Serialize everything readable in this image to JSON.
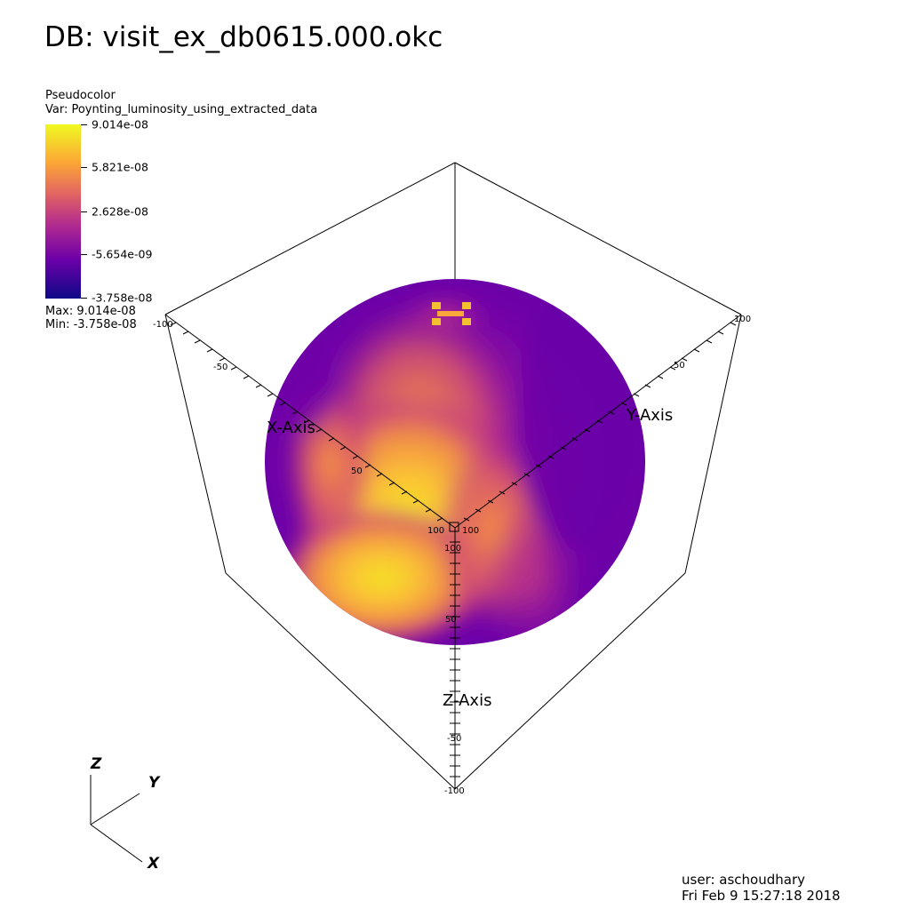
{
  "header": {
    "title": "DB: visit_ex_db0615.000.okc"
  },
  "legend": {
    "plot_type": "Pseudocolor",
    "variable": "Var: Poynting_luminosity_using_extracted_data",
    "ticks": [
      "9.014e-08",
      "5.821e-08",
      "2.628e-08",
      "-5.654e-09",
      "-3.758e-08"
    ],
    "max": "Max:  9.014e-08",
    "min": "Min: -3.758e-08",
    "colormap_colors": [
      "#f0f921",
      "#fca636",
      "#e16462",
      "#b12a90",
      "#6a00a8",
      "#0d0887"
    ]
  },
  "axes": {
    "x_title": "X-Axis",
    "y_title": "Y-Axis",
    "z_title": "Z-Axis",
    "x_labels": [
      "-100",
      "-50",
      "50",
      "100"
    ],
    "y_labels": [
      "100",
      "50",
      "100"
    ],
    "z_labels": [
      "100",
      "50",
      "-50",
      "-100"
    ],
    "corner_label": "100"
  },
  "triad": {
    "x": "X",
    "y": "Y",
    "z": "Z"
  },
  "footer": {
    "user": "user: aschoudhary",
    "date": "Fri Feb  9 15:27:18 2018"
  }
}
